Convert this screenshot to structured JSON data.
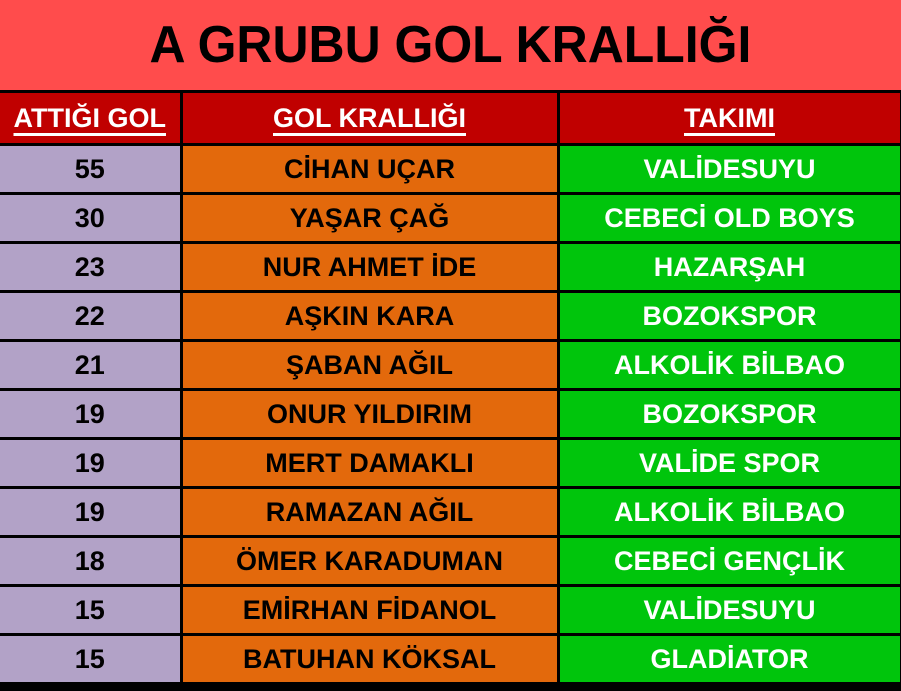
{
  "title": "A GRUBU GOL KRALLIĞI",
  "table": {
    "headers": [
      "ATTIĞI GOL",
      "GOL KRALLIĞI",
      "TAKIMI"
    ],
    "rows": [
      {
        "goals": "55",
        "player": "CİHAN UÇAR",
        "team": "VALİDESUYU"
      },
      {
        "goals": "30",
        "player": "YAŞAR ÇAĞ",
        "team": "CEBECİ OLD BOYS"
      },
      {
        "goals": "23",
        "player": "NUR AHMET İDE",
        "team": "HAZARŞAH"
      },
      {
        "goals": "22",
        "player": "AŞKIN KARA",
        "team": "BOZOKSPOR"
      },
      {
        "goals": "21",
        "player": "ŞABAN AĞIL",
        "team": "ALKOLİK BİLBAO"
      },
      {
        "goals": "19",
        "player": "ONUR YILDIRIM",
        "team": "BOZOKSPOR"
      },
      {
        "goals": "19",
        "player": "MERT DAMAKLI",
        "team": "VALİDE SPOR"
      },
      {
        "goals": "19",
        "player": "RAMAZAN AĞIL",
        "team": "ALKOLİK BİLBAO"
      },
      {
        "goals": "18",
        "player": "ÖMER KARADUMAN",
        "team": "CEBECİ GENÇLİK"
      },
      {
        "goals": "15",
        "player": "EMİRHAN FİDANOL",
        "team": "VALİDESUYU"
      },
      {
        "goals": "15",
        "player": "BATUHAN KÖKSAL",
        "team": "GLADİATOR"
      }
    ]
  },
  "colors": {
    "banner_bg": "#FF4C4C",
    "header_bg": "#C00000",
    "goals_column_bg": "#B2A2C7",
    "player_column_bg": "#E3690C",
    "team_column_bg": "#00C50C",
    "border": "#000000",
    "title_text": "#000000",
    "header_text": "#FFFFFF",
    "team_text": "#FFFFFF"
  },
  "chart_data": {
    "type": "table",
    "title": "A GRUBU GOL KRALLIĞI",
    "columns": [
      "ATTIĞI GOL",
      "GOL KRALLIĞI",
      "TAKIMI"
    ],
    "rows": [
      [
        55,
        "CİHAN UÇAR",
        "VALİDESUYU"
      ],
      [
        30,
        "YAŞAR ÇAĞ",
        "CEBECİ OLD BOYS"
      ],
      [
        23,
        "NUR AHMET İDE",
        "HAZARŞAH"
      ],
      [
        22,
        "AŞKIN KARA",
        "BOZOKSPOR"
      ],
      [
        21,
        "ŞABAN AĞIL",
        "ALKOLİK BİLBAO"
      ],
      [
        19,
        "ONUR YILDIRIM",
        "BOZOKSPOR"
      ],
      [
        19,
        "MERT DAMAKLI",
        "VALİDE SPOR"
      ],
      [
        19,
        "RAMAZAN AĞIL",
        "ALKOLİK BİLBAO"
      ],
      [
        18,
        "ÖMER KARADUMAN",
        "CEBECİ GENÇLİK"
      ],
      [
        15,
        "EMİRHAN FİDANOL",
        "VALİDESUYU"
      ],
      [
        15,
        "BATUHAN KÖKSAL",
        "GLADİATOR"
      ]
    ]
  }
}
